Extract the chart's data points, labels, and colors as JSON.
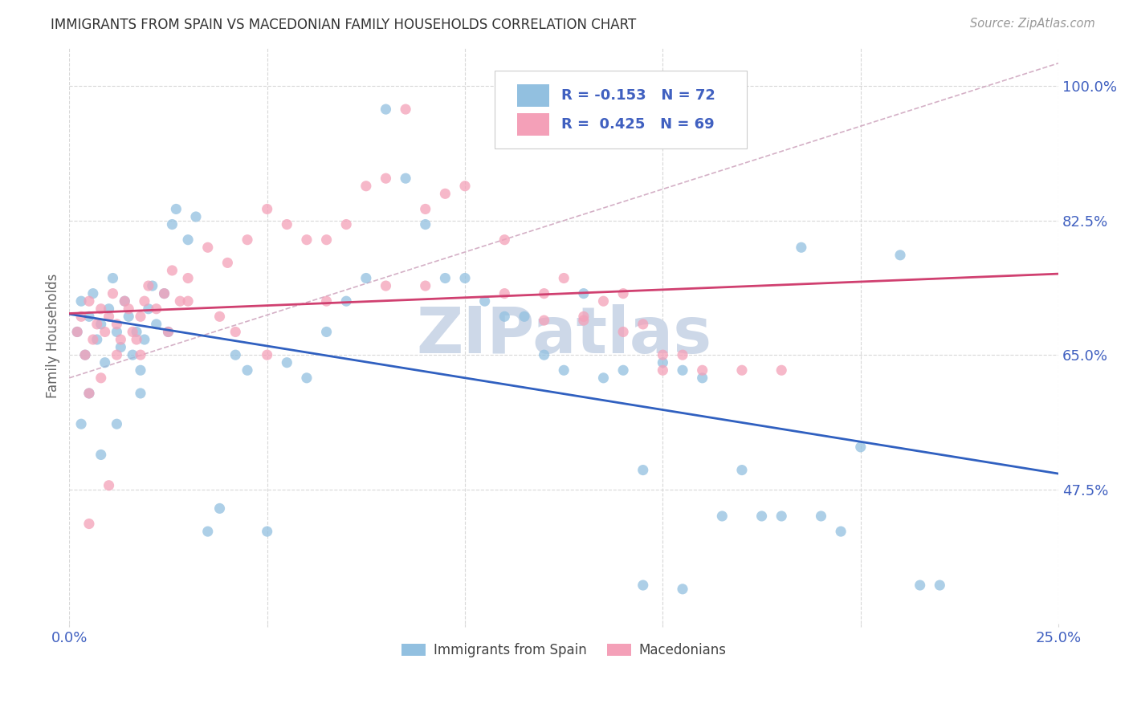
{
  "title": "IMMIGRANTS FROM SPAIN VS MACEDONIAN FAMILY HOUSEHOLDS CORRELATION CHART",
  "source": "Source: ZipAtlas.com",
  "ylabel": "Family Households",
  "ytick_labels": [
    "100.0%",
    "82.5%",
    "65.0%",
    "47.5%"
  ],
  "ytick_values": [
    1.0,
    0.825,
    0.65,
    0.475
  ],
  "blue_color": "#92c0e0",
  "pink_color": "#f4a0b8",
  "blue_line_color": "#3060c0",
  "pink_line_color": "#d04070",
  "dash_color": "#d0a8c0",
  "watermark_text": "ZIPatlas",
  "watermark_color": "#cdd8e8",
  "background_color": "#ffffff",
  "grid_color": "#d8d8d8",
  "title_color": "#333333",
  "axis_label_color": "#4060c0",
  "legend_text_color": "#4060c0",
  "source_color": "#999999",
  "x_range": [
    0.0,
    0.25
  ],
  "y_range": [
    0.3,
    1.05
  ],
  "blue_x": [
    0.002,
    0.003,
    0.004,
    0.005,
    0.005,
    0.006,
    0.007,
    0.008,
    0.009,
    0.01,
    0.011,
    0.012,
    0.013,
    0.014,
    0.015,
    0.016,
    0.017,
    0.018,
    0.019,
    0.02,
    0.021,
    0.022,
    0.024,
    0.025,
    0.026,
    0.027,
    0.03,
    0.032,
    0.035,
    0.038,
    0.042,
    0.045,
    0.05,
    0.055,
    0.06,
    0.065,
    0.07,
    0.075,
    0.08,
    0.085,
    0.09,
    0.095,
    0.1,
    0.105,
    0.11,
    0.115,
    0.12,
    0.125,
    0.13,
    0.135,
    0.14,
    0.145,
    0.15,
    0.155,
    0.16,
    0.165,
    0.17,
    0.175,
    0.18,
    0.185,
    0.19,
    0.195,
    0.2,
    0.21,
    0.215,
    0.22,
    0.003,
    0.008,
    0.012,
    0.018,
    0.145,
    0.155
  ],
  "blue_y": [
    0.68,
    0.72,
    0.65,
    0.7,
    0.6,
    0.73,
    0.67,
    0.69,
    0.64,
    0.71,
    0.75,
    0.68,
    0.66,
    0.72,
    0.7,
    0.65,
    0.68,
    0.63,
    0.67,
    0.71,
    0.74,
    0.69,
    0.73,
    0.68,
    0.82,
    0.84,
    0.8,
    0.83,
    0.42,
    0.45,
    0.65,
    0.63,
    0.42,
    0.64,
    0.62,
    0.68,
    0.72,
    0.75,
    0.97,
    0.88,
    0.82,
    0.75,
    0.75,
    0.72,
    0.7,
    0.7,
    0.65,
    0.63,
    0.73,
    0.62,
    0.63,
    0.5,
    0.64,
    0.63,
    0.62,
    0.44,
    0.5,
    0.44,
    0.44,
    0.79,
    0.44,
    0.42,
    0.53,
    0.78,
    0.35,
    0.35,
    0.56,
    0.52,
    0.56,
    0.6,
    0.35,
    0.345
  ],
  "pink_x": [
    0.002,
    0.003,
    0.004,
    0.005,
    0.006,
    0.007,
    0.008,
    0.009,
    0.01,
    0.011,
    0.012,
    0.013,
    0.014,
    0.015,
    0.016,
    0.017,
    0.018,
    0.019,
    0.02,
    0.022,
    0.024,
    0.026,
    0.028,
    0.03,
    0.035,
    0.04,
    0.045,
    0.05,
    0.055,
    0.06,
    0.065,
    0.07,
    0.075,
    0.08,
    0.085,
    0.09,
    0.095,
    0.1,
    0.11,
    0.12,
    0.125,
    0.13,
    0.135,
    0.14,
    0.145,
    0.15,
    0.155,
    0.16,
    0.17,
    0.18,
    0.005,
    0.008,
    0.012,
    0.018,
    0.025,
    0.03,
    0.038,
    0.042,
    0.05,
    0.065,
    0.08,
    0.09,
    0.11,
    0.12,
    0.13,
    0.14,
    0.15,
    0.005,
    0.01
  ],
  "pink_y": [
    0.68,
    0.7,
    0.65,
    0.72,
    0.67,
    0.69,
    0.71,
    0.68,
    0.7,
    0.73,
    0.69,
    0.67,
    0.72,
    0.71,
    0.68,
    0.67,
    0.7,
    0.72,
    0.74,
    0.71,
    0.73,
    0.76,
    0.72,
    0.75,
    0.79,
    0.77,
    0.8,
    0.84,
    0.82,
    0.8,
    0.8,
    0.82,
    0.87,
    0.88,
    0.97,
    0.84,
    0.86,
    0.87,
    0.8,
    0.73,
    0.75,
    0.7,
    0.72,
    0.73,
    0.69,
    0.65,
    0.65,
    0.63,
    0.63,
    0.63,
    0.6,
    0.62,
    0.65,
    0.65,
    0.68,
    0.72,
    0.7,
    0.68,
    0.65,
    0.72,
    0.74,
    0.74,
    0.73,
    0.695,
    0.695,
    0.68,
    0.63,
    0.43,
    0.48
  ]
}
